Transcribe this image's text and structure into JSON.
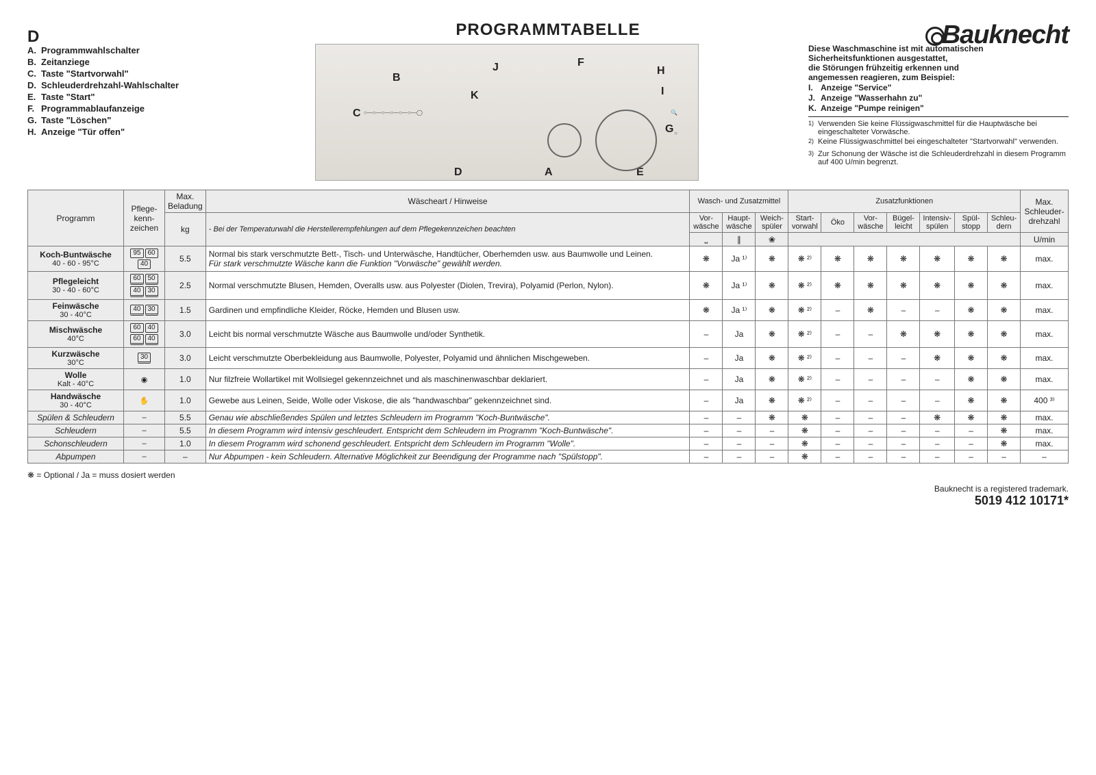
{
  "logo": "Bauknecht",
  "language_mark": "D",
  "title": "PROGRAMMTABELLE",
  "legend": [
    {
      "k": "A.",
      "t": "Programmwahlschalter"
    },
    {
      "k": "B.",
      "t": "Zeitanziege"
    },
    {
      "k": "C.",
      "t": "Taste \"Startvorwahl\""
    },
    {
      "k": "D.",
      "t": "Schleuderdrehzahl-Wahlschalter"
    },
    {
      "k": "E.",
      "t": "Taste \"Start\""
    },
    {
      "k": "F.",
      "t": "Programmablaufanzeige"
    },
    {
      "k": "G.",
      "t": "Taste \"Löschen\""
    },
    {
      "k": "H.",
      "t": "Anzeige \"Tür offen\""
    }
  ],
  "panel_markers": [
    "A",
    "B",
    "C",
    "D",
    "E",
    "F",
    "G",
    "H",
    "I",
    "J",
    "K"
  ],
  "info_intro": [
    "Diese Waschmaschine ist mit automatischen",
    "Sicherheitsfunktionen ausgestattet,",
    "die Störungen frühzeitig erkennen und",
    "angemessen reagieren, zum Beispiel:"
  ],
  "info_items": [
    {
      "k": "I.",
      "t": "Anzeige \"Service\""
    },
    {
      "k": "J.",
      "t": "Anzeige \"Wasserhahn zu\""
    },
    {
      "k": "K.",
      "t": "Anzeige \"Pumpe reinigen\""
    }
  ],
  "footnotes": [
    {
      "n": "1)",
      "t": "Verwenden Sie keine Flüssigwaschmittel für die Hauptwäsche bei eingeschalteter Vorwäsche."
    },
    {
      "n": "2)",
      "t": "Keine Flüssigwaschmittel bei eingeschalteter \"Startvorwahl\" verwenden."
    },
    {
      "n": "3)",
      "t": "Zur Schonung der Wäsche ist die Schleuderdrehzahl in diesem Programm auf 400 U/min begrenzt."
    }
  ],
  "table": {
    "headers": {
      "prog": "Programm",
      "care": "Pflege-\nkenn-\nzeichen",
      "load_top": "Max.\nBeladung",
      "load_unit": "kg",
      "hint_top": "Wäscheart / Hinweise",
      "hint_sub": "- Bei der Temperaturwahl die Herstellerempfehlungen auf dem Pflegekennzeichen beachten",
      "det_group": "Wasch- und Zusatzmittel",
      "det_cols": [
        "Vor-\nwäsche",
        "Haupt-\nwäsche",
        "Weich-\nspüler"
      ],
      "det_icons": [
        "⎵",
        "∥",
        "❀"
      ],
      "opt_group": "Zusatzfunktionen",
      "opt_cols": [
        "Start-\nvorwahl",
        "Öko",
        "Vor-\nwäsche",
        "Bügel-\nleicht",
        "Intensiv-\nspülen",
        "Spül-\nstopp",
        "Schleu-\ndern"
      ],
      "spin_top": "Max.\nSchleuder-\ndrehzahl",
      "spin_unit": "U/min"
    },
    "rows": [
      {
        "prog": "Koch-Buntwäsche",
        "sub": "40 - 60 - 95°C",
        "care": [
          "95",
          "60",
          "40"
        ],
        "load": "5.5",
        "hint": "Normal bis stark verschmutzte Bett-, Tisch- und Unterwäsche, Handtücher, Oberhemden usw. aus Baumwolle und Leinen.\nFür stark verschmutzte Wäsche kann die Funktion \"Vorwäsche\" gewählt werden.",
        "italic": true,
        "det": [
          "❋",
          "Ja ¹⁾",
          "❋"
        ],
        "opt": [
          "❋ ²⁾",
          "❋",
          "❋",
          "❋",
          "❋",
          "❋",
          "❋"
        ],
        "spin": "max."
      },
      {
        "prog": "Pflegeleicht",
        "sub": "30 - 40 - 60°C",
        "care": [
          "60̲",
          "50̲",
          "40̲",
          "30̲"
        ],
        "load": "2.5",
        "hint": "Normal verschmutzte Blusen, Hemden, Overalls usw. aus Polyester (Diolen, Trevira), Polyamid (Perlon, Nylon).",
        "det": [
          "❋",
          "Ja ¹⁾",
          "❋"
        ],
        "opt": [
          "❋ ²⁾",
          "❋",
          "❋",
          "❋",
          "❋",
          "❋",
          "❋"
        ],
        "spin": "max."
      },
      {
        "prog": "Feinwäsche",
        "sub": "30 - 40°C",
        "care": [
          "40̲",
          "30̲"
        ],
        "load": "1.5",
        "hint": "Gardinen und empfindliche Kleider, Röcke, Hemden und Blusen usw.",
        "det": [
          "❋",
          "Ja ¹⁾",
          "❋"
        ],
        "opt": [
          "❋ ²⁾",
          "–",
          "❋",
          "–",
          "–",
          "❋",
          "❋"
        ],
        "spin": "max."
      },
      {
        "prog": "Mischwäsche",
        "sub": "40°C",
        "care": [
          "60",
          "40",
          "60̲",
          "40̲"
        ],
        "load": "3.0",
        "hint": "Leicht bis normal verschmutzte Wäsche aus Baumwolle und/oder Synthetik.",
        "det": [
          "–",
          "Ja",
          "❋"
        ],
        "opt": [
          "❋ ²⁾",
          "–",
          "–",
          "❋",
          "❋",
          "❋",
          "❋"
        ],
        "spin": "max."
      },
      {
        "prog": "Kurzwäsche",
        "sub": "30°C",
        "care": [
          "30̲"
        ],
        "load": "3.0",
        "hint": "Leicht verschmutzte Oberbekleidung aus Baumwolle, Polyester, Polyamid und ähnlichen Mischgeweben.",
        "det": [
          "–",
          "Ja",
          "❋"
        ],
        "opt": [
          "❋ ²⁾",
          "–",
          "–",
          "–",
          "❋",
          "❋",
          "❋"
        ],
        "spin": "max."
      },
      {
        "prog": "Wolle",
        "sub": "Kalt - 40°C",
        "care": [
          "◉"
        ],
        "load": "1.0",
        "hint": "Nur filzfreie Wollartikel mit Wollsiegel gekennzeichnet und als maschinenwaschbar deklariert.",
        "det": [
          "–",
          "Ja",
          "❋"
        ],
        "opt": [
          "❋ ²⁾",
          "–",
          "–",
          "–",
          "–",
          "❋",
          "❋"
        ],
        "spin": "max."
      },
      {
        "prog": "Handwäsche",
        "sub": "30 - 40°C",
        "care": [
          "✋"
        ],
        "load": "1.0",
        "hint": "Gewebe aus Leinen, Seide, Wolle oder Viskose, die als \"handwaschbar\" gekennzeichnet sind.",
        "det": [
          "–",
          "Ja",
          "❋"
        ],
        "opt": [
          "❋ ²⁾",
          "–",
          "–",
          "–",
          "–",
          "❋",
          "❋"
        ],
        "spin": "400 ³⁾"
      },
      {
        "prog": "Spülen & Schleudern",
        "sub": "",
        "italicP": true,
        "care": [
          "–"
        ],
        "load": "5.5",
        "hint": "Genau wie abschließendes Spülen und letztes Schleudern im Programm \"Koch-Buntwäsche\".",
        "italic": true,
        "det": [
          "–",
          "–",
          "❋"
        ],
        "opt": [
          "❋",
          "–",
          "–",
          "–",
          "❋",
          "❋",
          "❋"
        ],
        "spin": "max."
      },
      {
        "prog": "Schleudern",
        "sub": "",
        "italicP": true,
        "care": [
          "–"
        ],
        "load": "5.5",
        "hint": "In diesem Programm wird intensiv geschleudert. Entspricht dem Schleudern im Programm \"Koch-Buntwäsche\".",
        "italic": true,
        "det": [
          "–",
          "–",
          "–"
        ],
        "opt": [
          "❋",
          "–",
          "–",
          "–",
          "–",
          "–",
          "❋"
        ],
        "spin": "max."
      },
      {
        "prog": "Schonschleudern",
        "sub": "",
        "italicP": true,
        "care": [
          "–"
        ],
        "load": "1.0",
        "hint": "In diesem Programm wird schonend geschleudert. Entspricht dem Schleudern im Programm \"Wolle\".",
        "italic": true,
        "det": [
          "–",
          "–",
          "–"
        ],
        "opt": [
          "❋",
          "–",
          "–",
          "–",
          "–",
          "–",
          "❋"
        ],
        "spin": "max."
      },
      {
        "prog": "Abpumpen",
        "sub": "",
        "italicP": true,
        "care": [
          "–"
        ],
        "load": "–",
        "hint": "Nur Abpumpen - kein Schleudern. Alternative Möglichkeit zur Beendigung der Programme nach \"Spülstopp\".",
        "italic": true,
        "det": [
          "–",
          "–",
          "–"
        ],
        "opt": [
          "❋",
          "–",
          "–",
          "–",
          "–",
          "–",
          "–"
        ],
        "spin": "–"
      }
    ]
  },
  "bottom_note": "❋ = Optional  /  Ja = muss dosiert werden",
  "trademark": "Bauknecht is a registered trademark.",
  "docnum": "5019 412 10171*"
}
